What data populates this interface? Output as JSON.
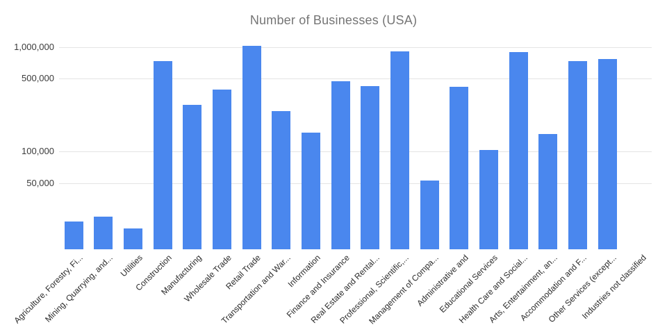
{
  "colors": {
    "bar": "#4a87ee",
    "gridline": "#e4e4e4",
    "title_text": "#757575",
    "y_tick_text": "#3a3a3a",
    "x_tick_text": "#2b2b2b",
    "background": "#ffffff"
  },
  "chart_data": {
    "type": "bar",
    "title": "Number of Businesses (USA)",
    "xlabel": "",
    "ylabel": "",
    "y_scale": "log",
    "grid": true,
    "legend": "none",
    "ylim": [
      11600,
      1250000
    ],
    "y_ticks": [
      {
        "label": "1,000,000",
        "value": 1000000
      },
      {
        "label": "500,000",
        "value": 500000
      },
      {
        "label": "100,000",
        "value": 100000
      },
      {
        "label": "50,000",
        "value": 50000
      }
    ],
    "categories": [
      "Agriculture, Forestry, Fi...",
      "Mining, Quarrying, and...",
      "Utilities",
      "Construction",
      "Manufacturing",
      "Wholesale Trade",
      "Retail Trade",
      "Transportation and War...",
      "Information",
      "Finance and Insurance",
      "Real Estate and Rental...",
      "Professional, Scientific,...",
      "Management of Compa...",
      "Administrative and",
      "Educational Services",
      "Health Care and Social...",
      "Arts, Entertainment, an...",
      "Accommodation and F...",
      "Other Services (except...",
      "Industries not classified"
    ],
    "values": [
      21500,
      24000,
      18500,
      740000,
      280000,
      395000,
      1040000,
      245000,
      153000,
      470000,
      425000,
      915000,
      53000,
      420000,
      104000,
      905000,
      147000,
      735000,
      775000,
      0
    ]
  }
}
